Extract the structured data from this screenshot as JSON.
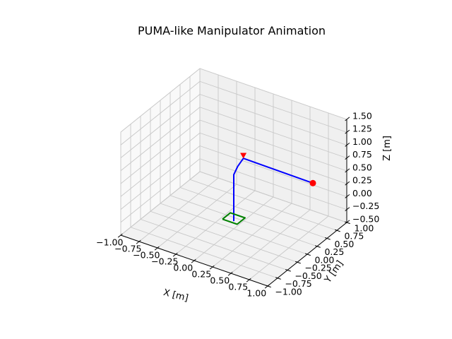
{
  "chart_data": {
    "type": "line-3d",
    "title": "PUMA-like Manipulator Animation",
    "xlabel": "X [m]",
    "ylabel": "Y [m]",
    "zlabel": "Z [m]",
    "xlim": [
      -1.0,
      1.0
    ],
    "ylim": [
      -1.0,
      1.0
    ],
    "zlim": [
      -0.5,
      1.5
    ],
    "x_ticks": [
      "−1.00",
      "−0.75",
      "−0.50",
      "−0.25",
      "0.00",
      "0.25",
      "0.50",
      "0.75",
      "1.00"
    ],
    "y_ticks": [
      "−1.00",
      "−0.75",
      "−0.50",
      "−0.25",
      "0.00",
      "0.25",
      "0.50",
      "0.75",
      "1.00"
    ],
    "z_ticks": [
      "−0.50",
      "−0.25",
      "0.00",
      "0.25",
      "0.50",
      "0.75",
      "1.00",
      "1.25",
      "1.50"
    ],
    "grid": true,
    "series": [
      {
        "kind": "arm",
        "color": "#0000ff",
        "points": [
          {
            "x": 0.0,
            "y": 0.0,
            "z": -0.35
          },
          {
            "x": 0.0,
            "y": 0.0,
            "z": 0.55
          },
          {
            "x": 0.0,
            "y": 0.1,
            "z": 0.65
          },
          {
            "x": 0.05,
            "y": 0.15,
            "z": 0.8
          },
          {
            "x": 0.7,
            "y": 0.7,
            "z": 0.3
          }
        ]
      },
      {
        "kind": "base",
        "color": "#008000",
        "points": [
          {
            "x": -0.1,
            "y": -0.1,
            "z": -0.3
          },
          {
            "x": 0.1,
            "y": -0.1,
            "z": -0.3
          },
          {
            "x": 0.1,
            "y": 0.1,
            "z": -0.3
          },
          {
            "x": -0.1,
            "y": 0.1,
            "z": -0.3
          },
          {
            "x": -0.1,
            "y": -0.1,
            "z": -0.3
          }
        ]
      },
      {
        "kind": "end-effector",
        "color": "#ff0000",
        "marker": "circle",
        "points": [
          {
            "x": 0.7,
            "y": 0.7,
            "z": 0.3
          }
        ]
      },
      {
        "kind": "target",
        "color": "#ff0000",
        "marker": "triangle-down",
        "points": [
          {
            "x": 0.05,
            "y": 0.15,
            "z": 0.85
          }
        ]
      }
    ]
  }
}
